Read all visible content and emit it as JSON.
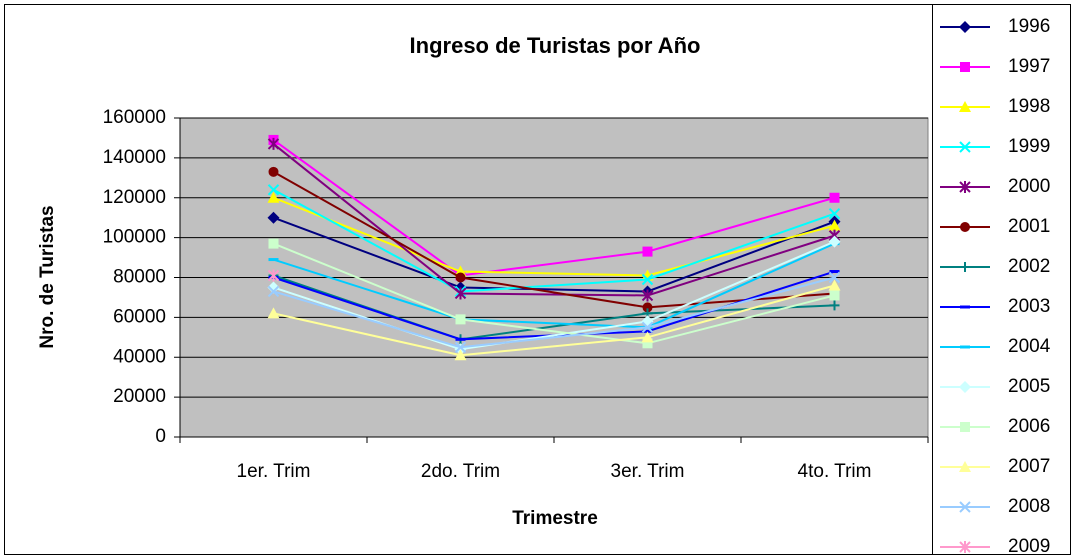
{
  "chart_data": {
    "type": "line",
    "title": "Ingreso de Turistas por Año",
    "x_label": "Trimestre",
    "y_label": "Nro. de Turistas",
    "categories": [
      "1er. Trim",
      "2do. Trim",
      "3er. Trim",
      "4to. Trim"
    ],
    "ylim": [
      0,
      160000
    ],
    "yticks": [
      0,
      20000,
      40000,
      60000,
      80000,
      100000,
      120000,
      140000,
      160000
    ],
    "grid": true,
    "legend": "right",
    "series": [
      {
        "name": "1996",
        "color": "#000080",
        "marker": "diamond",
        "values": [
          110000,
          75000,
          73000,
          108000
        ]
      },
      {
        "name": "1997",
        "color": "#ff00ff",
        "marker": "square",
        "values": [
          149000,
          81000,
          93000,
          120000
        ]
      },
      {
        "name": "1998",
        "color": "#ffff00",
        "marker": "triangle",
        "values": [
          120000,
          83000,
          81000,
          106000
        ]
      },
      {
        "name": "1999",
        "color": "#00ffff",
        "marker": "x",
        "values": [
          124000,
          73000,
          79000,
          112000
        ]
      },
      {
        "name": "2000",
        "color": "#800080",
        "marker": "star",
        "values": [
          147000,
          72000,
          71000,
          101000
        ]
      },
      {
        "name": "2001",
        "color": "#800000",
        "marker": "circle",
        "values": [
          133000,
          80000,
          65000,
          72000
        ]
      },
      {
        "name": "2002",
        "color": "#008080",
        "marker": "plus",
        "values": [
          81000,
          49000,
          62000,
          66000
        ]
      },
      {
        "name": "2003",
        "color": "#0000ff",
        "marker": "dash",
        "values": [
          80000,
          49000,
          53000,
          83000
        ]
      },
      {
        "name": "2004",
        "color": "#00ccff",
        "marker": "dash",
        "values": [
          89000,
          59000,
          55000,
          97000
        ]
      },
      {
        "name": "2005",
        "color": "#ccffff",
        "marker": "diamond",
        "values": [
          75000,
          44000,
          58000,
          98000
        ]
      },
      {
        "name": "2006",
        "color": "#ccffcc",
        "marker": "square",
        "values": [
          97000,
          59000,
          47000,
          71000
        ]
      },
      {
        "name": "2007",
        "color": "#ffff99",
        "marker": "triangle",
        "values": [
          62000,
          41000,
          50000,
          76000
        ]
      },
      {
        "name": "2008",
        "color": "#99ccff",
        "marker": "x",
        "values": [
          73000,
          45000,
          55000,
          80000
        ]
      },
      {
        "name": "2009",
        "color": "#ff99cc",
        "marker": "star",
        "values": [
          81000,
          null,
          null,
          null
        ]
      }
    ]
  }
}
